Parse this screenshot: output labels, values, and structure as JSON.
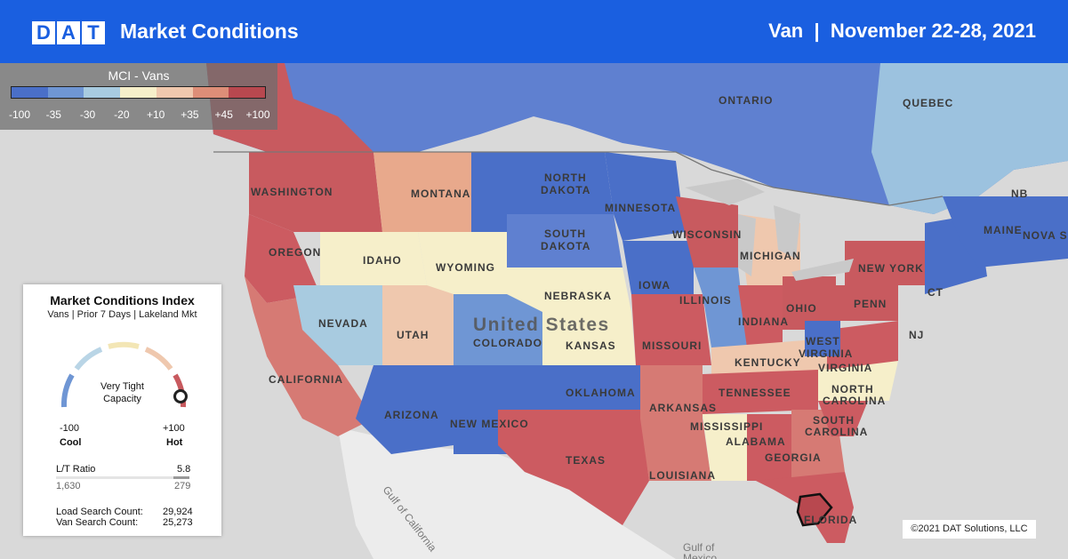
{
  "header": {
    "logo_letters": [
      "D",
      "A",
      "T"
    ],
    "title": "Market Conditions",
    "right_title": "Van  |  November 22-28, 2021"
  },
  "scale_legend": {
    "title": "MCI - Vans",
    "colors": [
      "#4a6fc8",
      "#6f96d4",
      "#a8cbe0",
      "#f6efca",
      "#efc8ae",
      "#dd8e78",
      "#b8484f"
    ],
    "ticks": [
      "-100",
      "-35",
      "-30",
      "-20",
      "+10",
      "+35",
      "+45",
      "+100"
    ]
  },
  "card": {
    "title": "Market Conditions Index",
    "subtitle": "Vans | Prior 7 Days | Lakeland Mkt",
    "status_line1": "Very Tight",
    "status_line2": "Capacity",
    "min_value": "-100",
    "min_label": "Cool",
    "max_value": "+100",
    "max_label": "Hot",
    "ratio_label": "L/T Ratio",
    "ratio_value": "5.8",
    "loads": "1,630",
    "trucks": "279",
    "load_search_label": "Load Search Count:",
    "load_search_value": "29,924",
    "van_search_label": "Van Search Count:",
    "van_search_value": "25,273",
    "gauge_index": 88
  },
  "map_labels": {
    "ontario": "ONTARIO",
    "quebec": "QUEBEC",
    "washington": "WASHINGTON",
    "montana": "MONTANA",
    "north_dakota_1": "NORTH",
    "north_dakota_2": "DAKOTA",
    "minnesota": "MINNESOTA",
    "maine": "MAINE",
    "nova_scotia": "NOVA SC",
    "nb": "NB",
    "oregon": "OREGON",
    "idaho": "IDAHO",
    "wyoming": "WYOMING",
    "south_dakota_1": "SOUTH",
    "south_dakota_2": "DAKOTA",
    "wisconsin": "WISCONSIN",
    "michigan": "MICHIGAN",
    "new_york": "NEW YORK",
    "ct": "CT",
    "nevada": "NEVADA",
    "utah": "UTAH",
    "colorado": "COLORADO",
    "united_states": "United States",
    "nebraska": "NEBRASKA",
    "iowa": "IOWA",
    "illinois": "ILLINOIS",
    "indiana": "INDIANA",
    "ohio": "OHIO",
    "penn": "PENN",
    "nj": "NJ",
    "kansas": "KANSAS",
    "missouri": "MISSOURI",
    "kentucky": "KENTUCKY",
    "west_virginia_1": "WEST",
    "west_virginia_2": "VIRGINIA",
    "virginia": "VIRGINIA",
    "california": "CALIFORNIA",
    "arizona": "ARIZONA",
    "new_mexico": "NEW MEXICO",
    "oklahoma": "OKLAHOMA",
    "arkansas": "ARKANSAS",
    "tennessee": "TENNESSEE",
    "north_carolina_1": "NORTH",
    "north_carolina_2": "CAROLINA",
    "south_carolina_1": "SOUTH",
    "south_carolina_2": "CAROLINA",
    "mississippi": "MISSISSIPPI",
    "alabama": "ALABAMA",
    "georgia": "GEORGIA",
    "texas": "TEXAS",
    "louisiana": "LOUISIANA",
    "florida": "FLORIDA",
    "gulf_california": "Gulf of California",
    "gulf_mexico_1": "Gulf of",
    "gulf_mexico_2": "Mexico"
  },
  "copyright": "©2021 DAT Solutions, LLC"
}
